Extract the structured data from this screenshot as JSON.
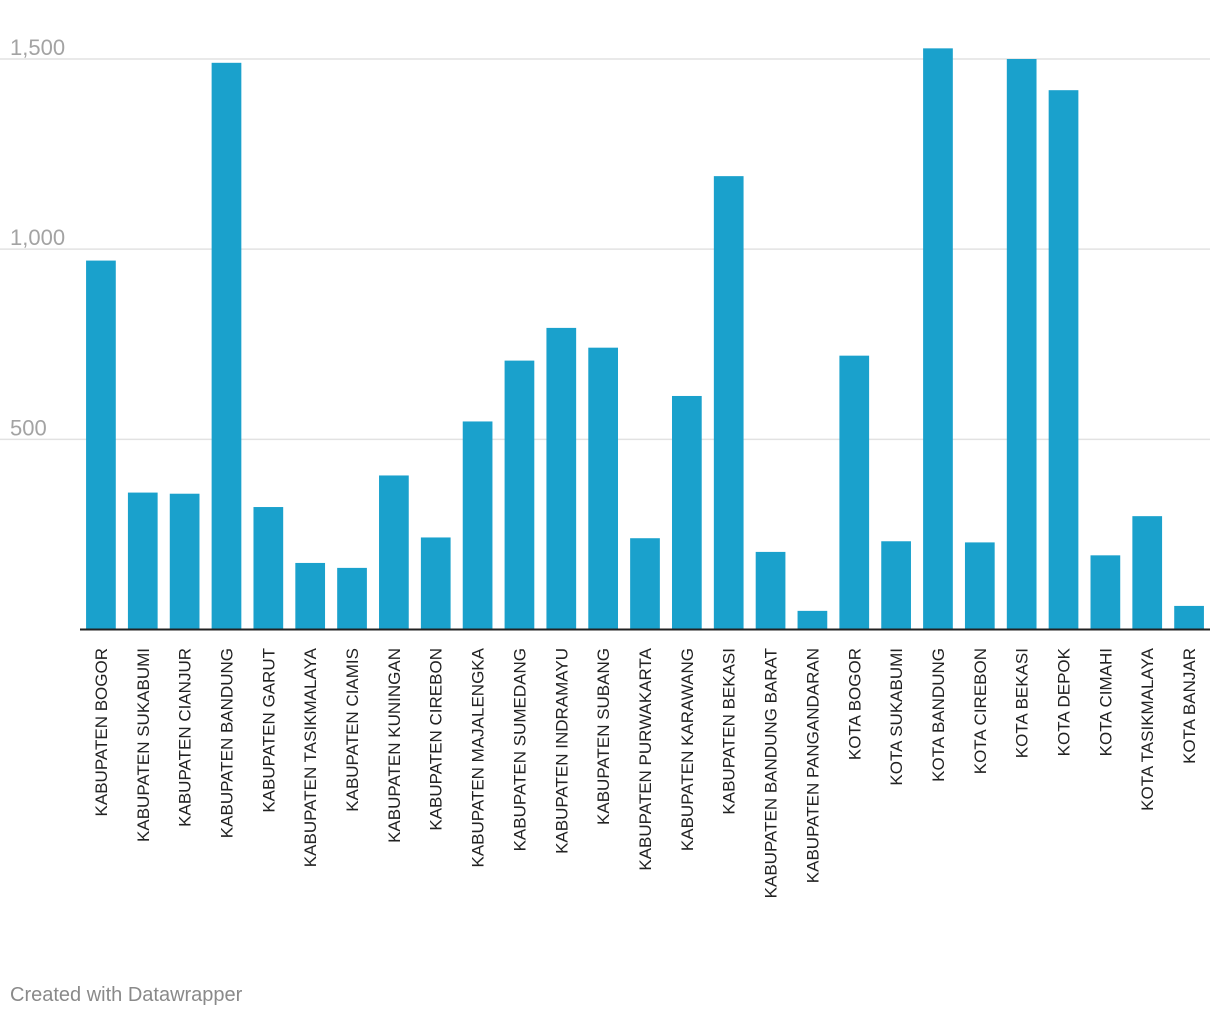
{
  "chart_data": {
    "type": "bar",
    "title": "",
    "xlabel": "",
    "ylabel": "",
    "ylim": [
      0,
      1500
    ],
    "yticks": [
      500,
      1000,
      1500
    ],
    "ytick_labels": [
      "500",
      "1,000",
      "1,500"
    ],
    "grid": true,
    "bar_color": "#1aa1cc",
    "categories": [
      "KABUPATEN BOGOR",
      "KABUPATEN SUKABUMI",
      "KABUPATEN CIANJUR",
      "KABUPATEN BANDUNG",
      "KABUPATEN GARUT",
      "KABUPATEN TASIKMALAYA",
      "KABUPATEN CIAMIS",
      "KABUPATEN KUNINGAN",
      "KABUPATEN CIREBON",
      "KABUPATEN MAJALENGKA",
      "KABUPATEN SUMEDANG",
      "KABUPATEN INDRAMAYU",
      "KABUPATEN SUBANG",
      "KABUPATEN PURWAKARTA",
      "KABUPATEN KARAWANG",
      "KABUPATEN BEKASI",
      "KABUPATEN BANDUNG BARAT",
      "KABUPATEN PANGANDARAN",
      "KOTA BOGOR",
      "KOTA SUKABUMI",
      "KOTA BANDUNG",
      "KOTA CIREBON",
      "KOTA BEKASI",
      "KOTA DEPOK",
      "KOTA CIMAHI",
      "KOTA TASIKMALAYA",
      "KOTA BANJAR"
    ],
    "values": [
      970,
      360,
      357,
      1490,
      322,
      175,
      162,
      405,
      242,
      547,
      707,
      793,
      741,
      240,
      614,
      1192,
      204,
      49,
      720,
      232,
      1528,
      229,
      1500,
      1418,
      195,
      298,
      62
    ]
  },
  "footer": {
    "credit": "Created with Datawrapper"
  }
}
